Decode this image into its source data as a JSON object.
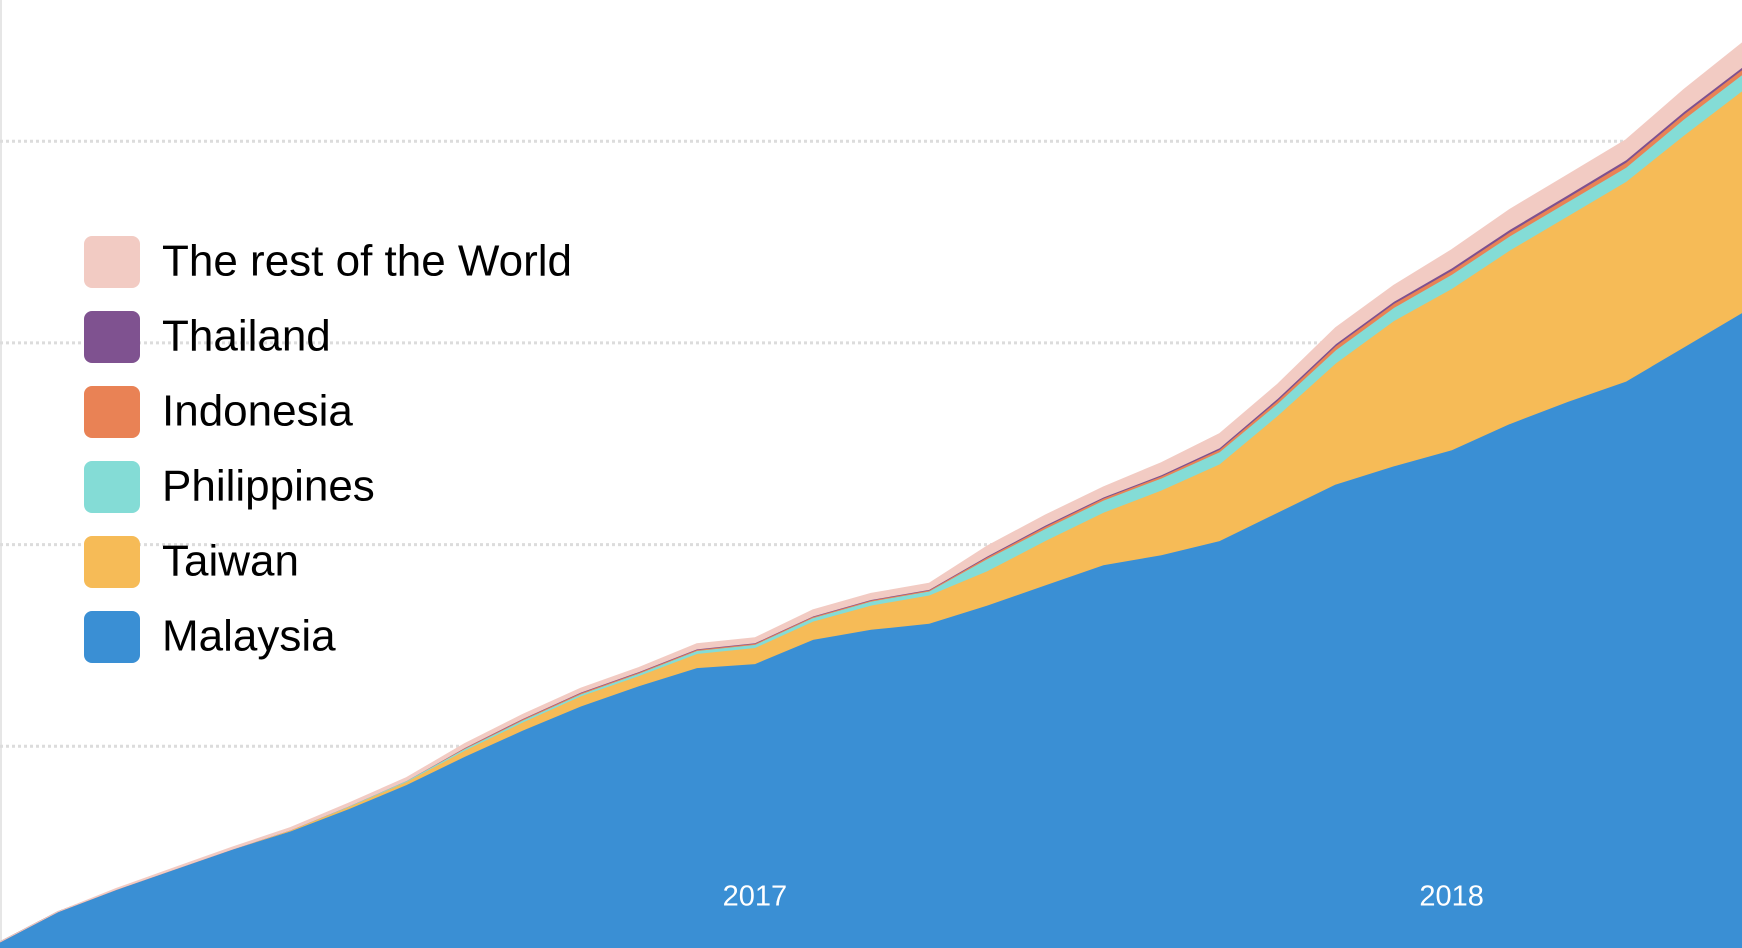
{
  "chart_data": {
    "type": "stacked_area",
    "categories": [
      null,
      null,
      null,
      null,
      null,
      null,
      null,
      null,
      null,
      null,
      null,
      null,
      null,
      "2017",
      null,
      null,
      null,
      null,
      null,
      null,
      null,
      null,
      null,
      null,
      null,
      "2018",
      null,
      null,
      null,
      null,
      null
    ],
    "series": [
      {
        "name": "Malaysia",
        "color": "#3a8fd4",
        "values": [
          0.03,
          0.18,
          0.29,
          0.39,
          0.49,
          0.58,
          0.69,
          0.81,
          0.95,
          1.08,
          1.2,
          1.3,
          1.39,
          1.41,
          1.53,
          1.58,
          1.61,
          1.7,
          1.8,
          1.9,
          1.95,
          2.02,
          2.16,
          2.3,
          2.39,
          2.47,
          2.6,
          2.71,
          2.81,
          2.98,
          3.15
        ]
      },
      {
        "name": "Taiwan",
        "color": "#f6bb57",
        "values": [
          0,
          0,
          0,
          0,
          0,
          0.005,
          0.01,
          0.015,
          0.03,
          0.04,
          0.05,
          0.05,
          0.07,
          0.08,
          0.09,
          0.12,
          0.14,
          0.17,
          0.22,
          0.26,
          0.32,
          0.38,
          0.48,
          0.6,
          0.72,
          0.8,
          0.86,
          0.92,
          0.99,
          1.05,
          1.1
        ]
      },
      {
        "name": "Philippines",
        "color": "#84dcd6",
        "values": [
          0,
          0,
          0,
          0,
          0,
          0,
          0.003,
          0.005,
          0.008,
          0.01,
          0.01,
          0.012,
          0.015,
          0.015,
          0.018,
          0.02,
          0.02,
          0.06,
          0.06,
          0.06,
          0.06,
          0.06,
          0.06,
          0.065,
          0.065,
          0.07,
          0.07,
          0.07,
          0.07,
          0.08,
          0.08
        ]
      },
      {
        "name": "Indonesia",
        "color": "#e98255",
        "values": [
          0,
          0,
          0,
          0,
          0,
          0,
          0,
          0,
          0.003,
          0.005,
          0.005,
          0.005,
          0.005,
          0.005,
          0.005,
          0.005,
          0.005,
          0.008,
          0.01,
          0.01,
          0.01,
          0.012,
          0.015,
          0.02,
          0.02,
          0.02,
          0.02,
          0.022,
          0.025,
          0.025,
          0.025
        ]
      },
      {
        "name": "Thailand",
        "color": "#7f5290",
        "values": [
          0,
          0,
          0,
          0,
          0,
          0,
          0,
          0,
          0.002,
          0.003,
          0.003,
          0.003,
          0.003,
          0.003,
          0.003,
          0.003,
          0.003,
          0.005,
          0.006,
          0.006,
          0.006,
          0.008,
          0.01,
          0.01,
          0.01,
          0.012,
          0.012,
          0.012,
          0.012,
          0.012,
          0.012
        ]
      },
      {
        "name": "The rest of the World",
        "color": "#f2cbc3",
        "values": [
          0,
          0,
          0.005,
          0.008,
          0.01,
          0.012,
          0.015,
          0.015,
          0.02,
          0.02,
          0.02,
          0.02,
          0.025,
          0.025,
          0.03,
          0.03,
          0.03,
          0.05,
          0.05,
          0.05,
          0.06,
          0.07,
          0.07,
          0.08,
          0.08,
          0.09,
          0.1,
          0.1,
          0.1,
          0.11,
          0.12
        ]
      }
    ],
    "ylim": [
      0,
      4.7
    ],
    "ygrid": [
      1,
      2,
      3,
      4
    ]
  }
}
